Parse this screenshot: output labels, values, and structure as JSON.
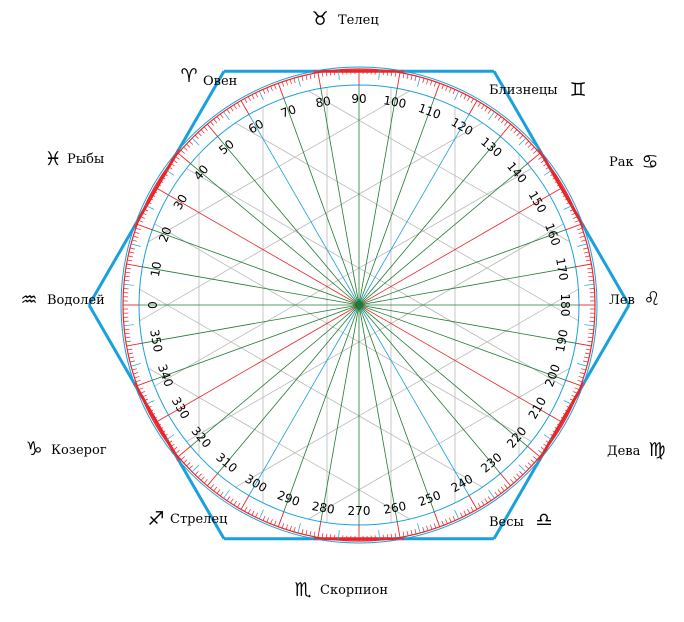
{
  "colors": {
    "red": "#e8262b",
    "blue": "#1aa0dc",
    "green": "#1f7a33",
    "grid": "#b9b9b9",
    "text": "#000000",
    "background": "#ffffff"
  },
  "degree_labels": [
    "0",
    "10",
    "20",
    "30",
    "40",
    "50",
    "60",
    "70",
    "80",
    "90",
    "100",
    "110",
    "120",
    "130",
    "140",
    "150",
    "160",
    "170",
    "180",
    "190",
    "200",
    "210",
    "220",
    "230",
    "240",
    "250",
    "260",
    "270",
    "280",
    "290",
    "300",
    "310",
    "320",
    "330",
    "340",
    "350"
  ],
  "signs": [
    {
      "id": "taurus",
      "name": "Телец",
      "glyph": "♉",
      "glyph_icon": "taurus-icon"
    },
    {
      "id": "gemini",
      "name": "Близнецы",
      "glyph": "♊",
      "glyph_icon": "gemini-icon"
    },
    {
      "id": "cancer",
      "name": "Рак",
      "glyph": "♋",
      "glyph_icon": "cancer-icon"
    },
    {
      "id": "leo",
      "name": "Лев",
      "glyph": "♌",
      "glyph_icon": "leo-icon"
    },
    {
      "id": "virgo",
      "name": "Дева",
      "glyph": "♍",
      "glyph_icon": "virgo-icon"
    },
    {
      "id": "libra",
      "name": "Весы",
      "glyph": "♎",
      "glyph_icon": "libra-icon"
    },
    {
      "id": "scorpio",
      "name": "Скорпион",
      "glyph": "♏",
      "glyph_icon": "scorpio-icon"
    },
    {
      "id": "sagittarius",
      "name": "Стрелец",
      "glyph": "♐",
      "glyph_icon": "sagittarius-icon"
    },
    {
      "id": "capricorn",
      "name": "Козерог",
      "glyph": "♑",
      "glyph_icon": "capricorn-icon"
    },
    {
      "id": "aquarius",
      "name": "Водолей",
      "glyph": "♒",
      "glyph_icon": "aquarius-icon"
    },
    {
      "id": "pisces",
      "name": "Рыбы",
      "glyph": "♓",
      "glyph_icon": "pisces-icon"
    },
    {
      "id": "aries",
      "name": "Овен",
      "glyph": "♈",
      "glyph_icon": "aries-icon"
    }
  ]
}
